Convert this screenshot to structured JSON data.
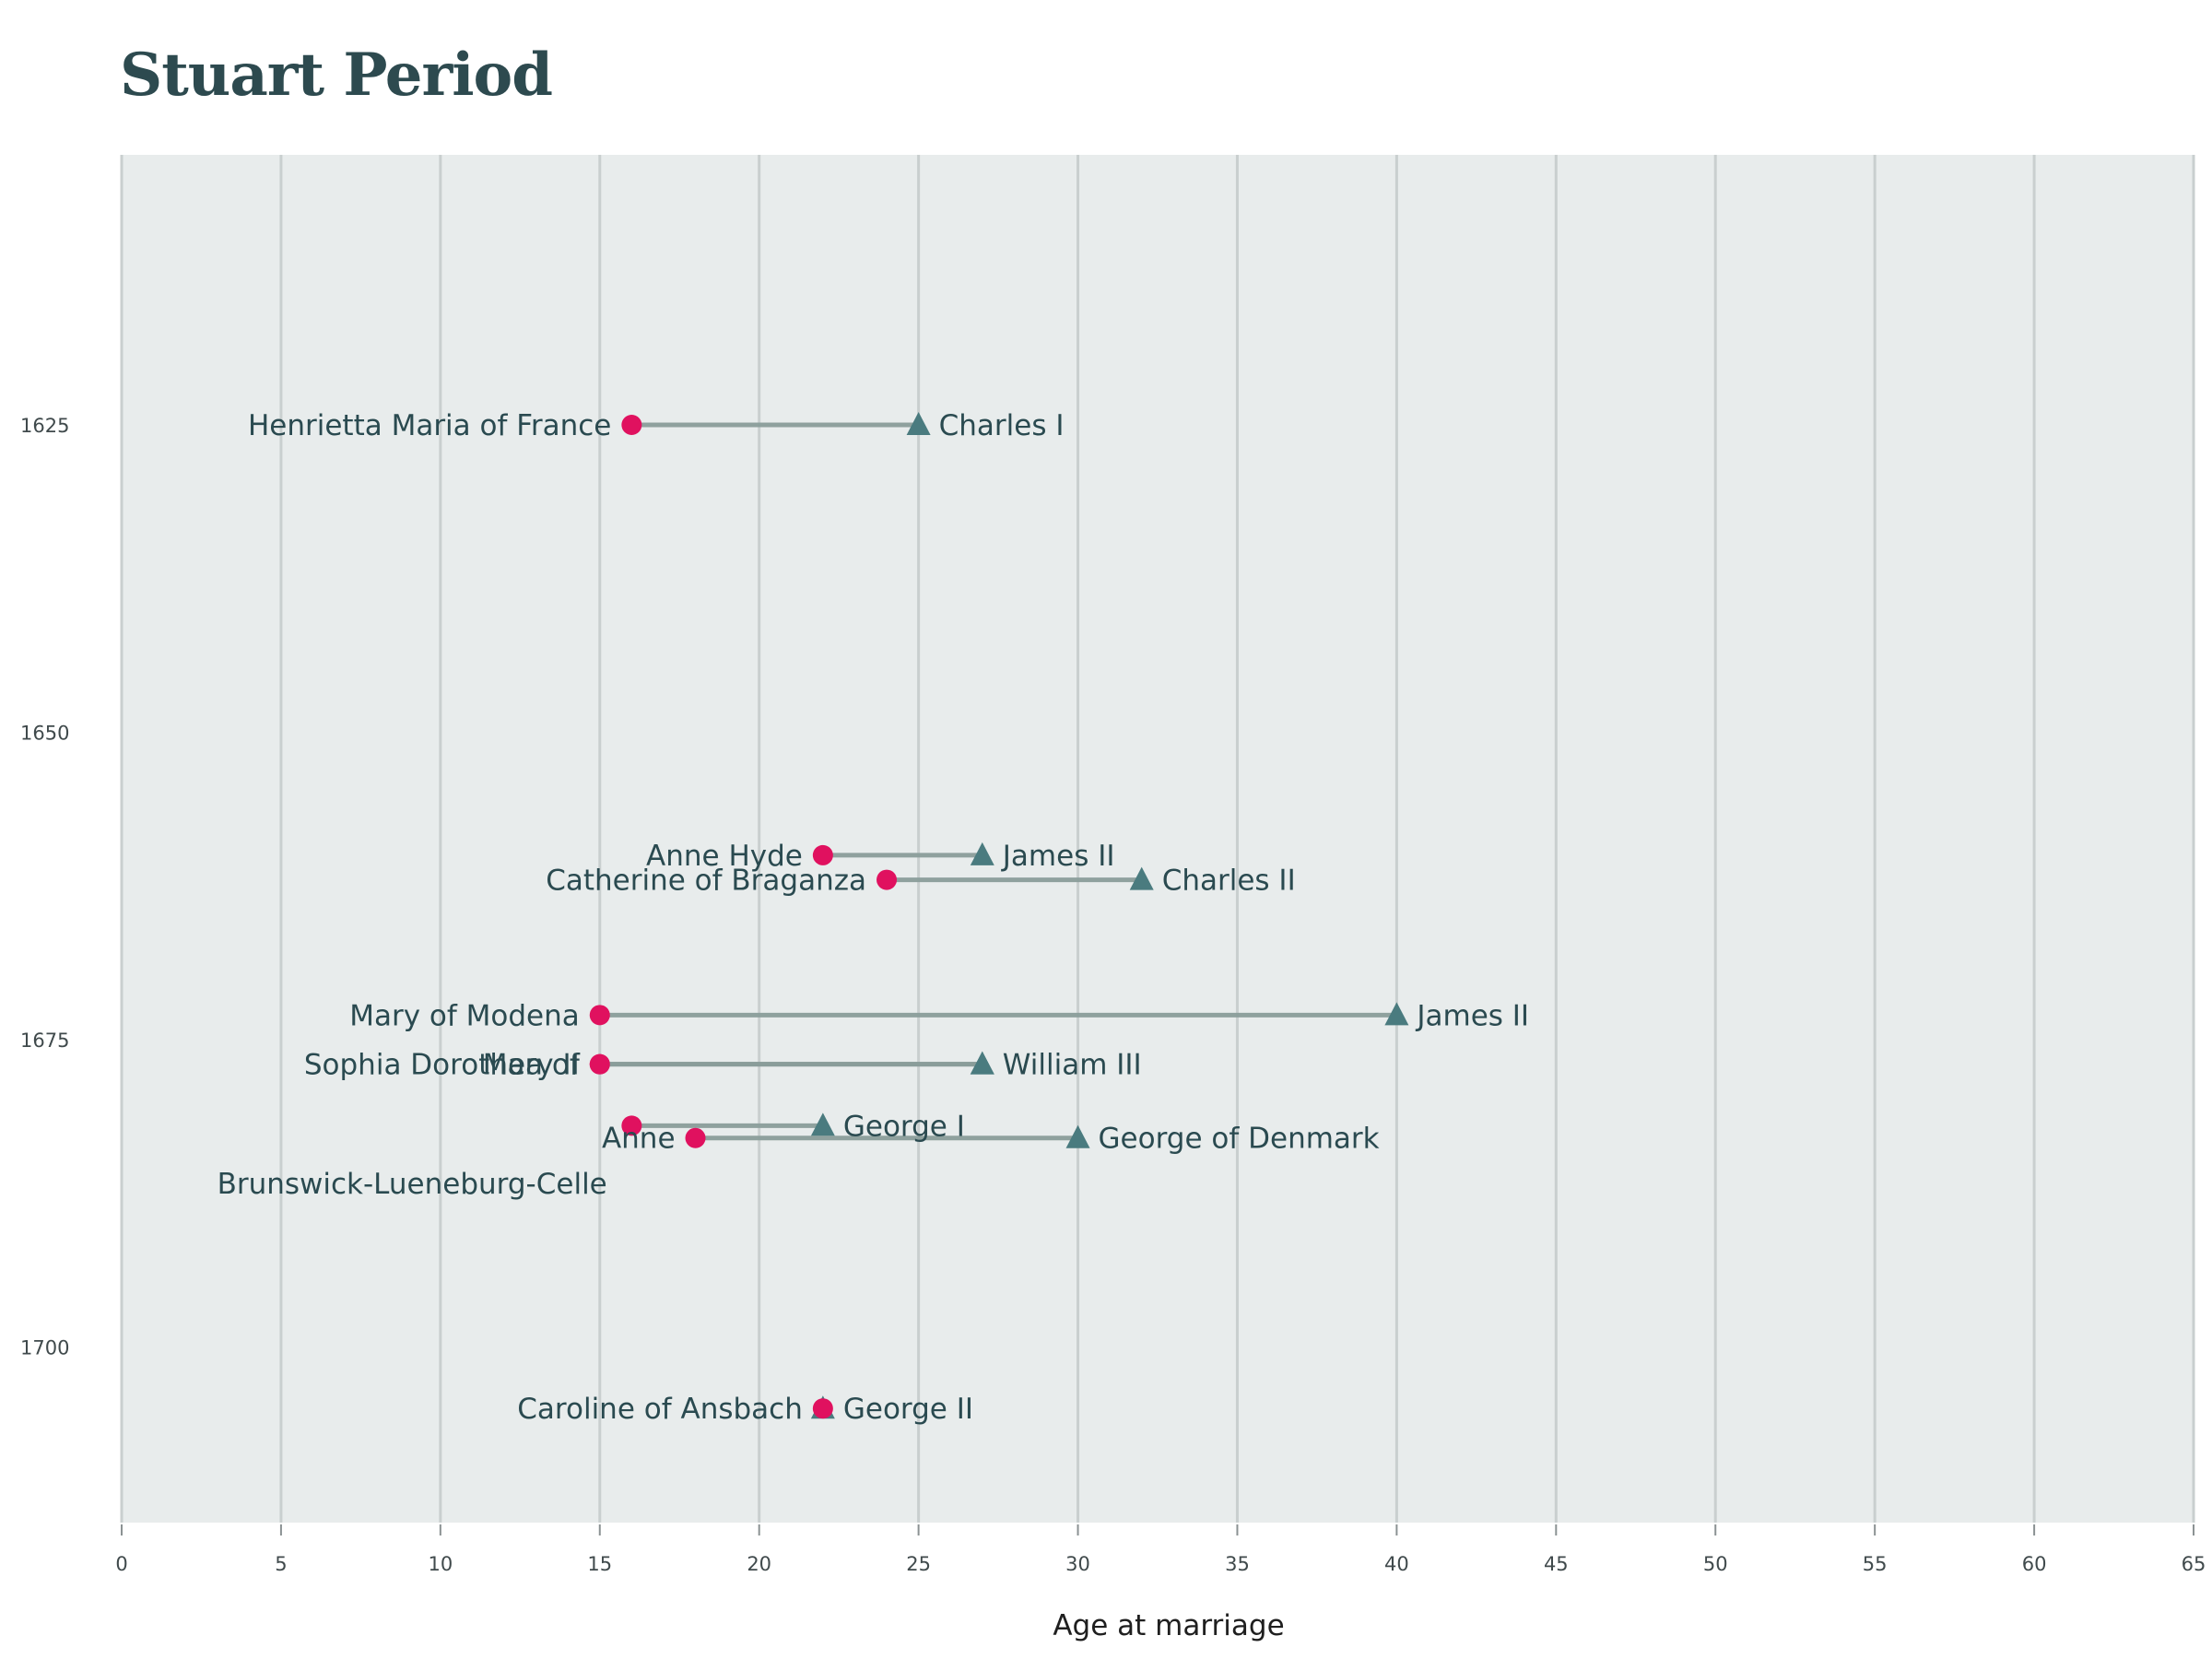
{
  "chart_data": {
    "type": "dumbbell",
    "title": "Stuart Period",
    "xlabel": "Age at marriage",
    "ylabel": "",
    "xlim": [
      0,
      65
    ],
    "ylim": [
      1703.5,
      1603
    ],
    "x_ticks": [
      0,
      5,
      10,
      15,
      20,
      25,
      30,
      35,
      40,
      45,
      50,
      55,
      60,
      65
    ],
    "y_ticks": [
      1625,
      1650,
      1675,
      1700
    ],
    "grid": "vertical",
    "colors": {
      "panel": "#e8ecec",
      "grid": "#c9cfcf",
      "connector": "#8a9d9a",
      "female_marker": "#e0115f",
      "male_marker": "#4a7b7f",
      "label": "#2a4a50",
      "title": "#2d4a4f"
    },
    "marriages": [
      {
        "year": 1625,
        "husband": "Charles I",
        "husband_age": 25,
        "wife": "Henrietta Maria of France",
        "wife_age": 16
      },
      {
        "year": 1660,
        "husband": "James II",
        "husband_age": 27,
        "wife": "Anne Hyde",
        "wife_age": 22
      },
      {
        "year": 1662,
        "husband": "Charles II",
        "husband_age": 32,
        "wife": "Catherine of Braganza",
        "wife_age": 24
      },
      {
        "year": 1673,
        "husband": "James II",
        "husband_age": 40,
        "wife": "Mary of Modena",
        "wife_age": 15
      },
      {
        "year": 1677,
        "husband": "William III",
        "husband_age": 27,
        "wife": "Mary II",
        "wife_age": 15
      },
      {
        "year": 1677,
        "husband": "",
        "husband_age": 27,
        "wife": "Sophia Dorothea of",
        "wife_age": 15
      },
      {
        "year": 1682,
        "husband": "George I",
        "husband_age": 22,
        "wife": "",
        "wife_age": 16
      },
      {
        "year": 1683,
        "husband": "George of Denmark",
        "husband_age": 30,
        "wife": "Anne",
        "wife_age": 18
      },
      {
        "year": 1705,
        "husband": "George II",
        "husband_age": 22,
        "wife": "Caroline of Ansbach",
        "wife_age": 22
      }
    ],
    "extra_labels": [
      "Brunswick-Lueneburg-Celle"
    ]
  }
}
